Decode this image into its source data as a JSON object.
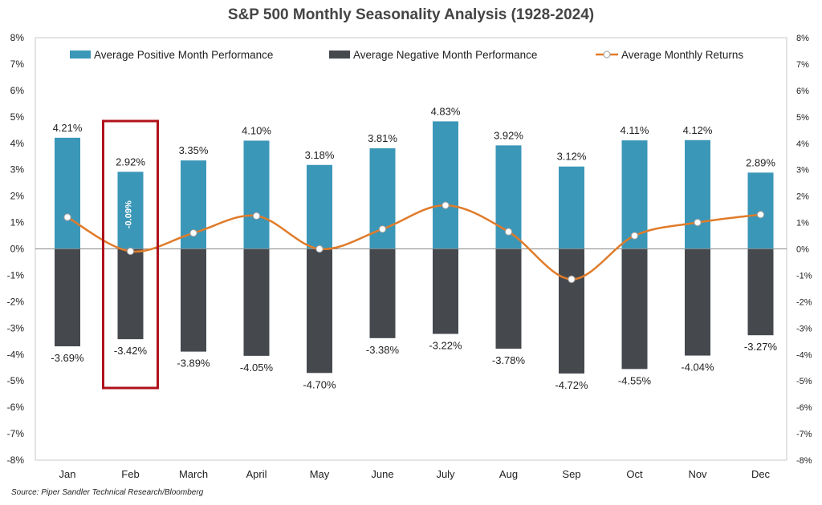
{
  "chart_data": {
    "type": "bar",
    "title": "S&P 500 Monthly Seasonality Analysis (1928-2024)",
    "source": "Source: Piper Sandler Technical Research/Bloomberg",
    "categories": [
      "Jan",
      "Feb",
      "March",
      "April",
      "May",
      "June",
      "July",
      "Aug",
      "Sep",
      "Oct",
      "Nov",
      "Dec"
    ],
    "series": [
      {
        "name": "Average Positive Month Performance",
        "type": "bar",
        "color": "#3b97b8",
        "values": [
          4.21,
          2.92,
          3.35,
          4.1,
          3.18,
          3.81,
          4.83,
          3.92,
          3.12,
          4.11,
          4.12,
          2.89
        ],
        "labels": [
          "4.21%",
          "2.92%",
          "3.35%",
          "4.10%",
          "3.18%",
          "3.81%",
          "4.83%",
          "3.92%",
          "3.12%",
          "4.11%",
          "4.12%",
          "2.89%"
        ]
      },
      {
        "name": "Average Negative Month Performance",
        "type": "bar",
        "color": "#45494e",
        "values": [
          -3.69,
          -3.42,
          -3.89,
          -4.05,
          -4.7,
          -3.38,
          -3.22,
          -3.78,
          -4.72,
          -4.55,
          -4.04,
          -3.27
        ],
        "labels": [
          "-3.69%",
          "-3.42%",
          "-3.89%",
          "-4.05%",
          "-4.70%",
          "-3.38%",
          "-3.22%",
          "-3.78%",
          "-4.72%",
          "-4.55%",
          "-4.04%",
          "-3.27%"
        ]
      },
      {
        "name": "Average Monthly Returns",
        "type": "line",
        "color": "#e07b2a",
        "values": [
          1.2,
          -0.09,
          0.6,
          1.25,
          0.0,
          0.75,
          1.65,
          0.65,
          -1.15,
          0.5,
          1.0,
          1.3
        ]
      }
    ],
    "ylim": [
      -8,
      8
    ],
    "yticks": [
      "8%",
      "7%",
      "6%",
      "5%",
      "4%",
      "3%",
      "2%",
      "1%",
      "0%",
      "-1%",
      "-2%",
      "-3%",
      "-4%",
      "-5%",
      "-6%",
      "-7%",
      "-8%"
    ],
    "annotation": {
      "category": "Feb",
      "label": "-0.09%",
      "highlight_color": "#b0121b"
    },
    "legend_position": "top",
    "grid": false
  }
}
